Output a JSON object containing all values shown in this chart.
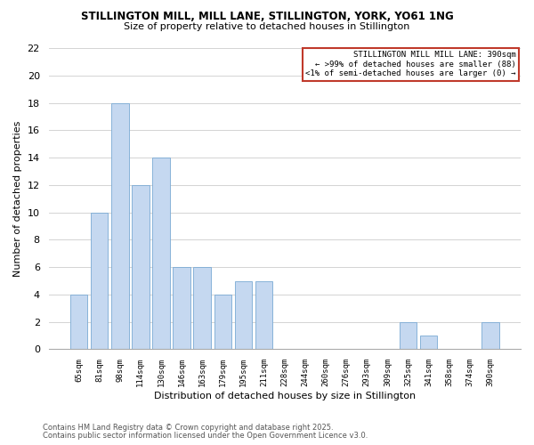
{
  "title1": "STILLINGTON MILL, MILL LANE, STILLINGTON, YORK, YO61 1NG",
  "title2": "Size of property relative to detached houses in Stillington",
  "xlabel": "Distribution of detached houses by size in Stillington",
  "ylabel": "Number of detached properties",
  "categories": [
    "65sqm",
    "81sqm",
    "98sqm",
    "114sqm",
    "130sqm",
    "146sqm",
    "163sqm",
    "179sqm",
    "195sqm",
    "211sqm",
    "228sqm",
    "244sqm",
    "260sqm",
    "276sqm",
    "293sqm",
    "309sqm",
    "325sqm",
    "341sqm",
    "358sqm",
    "374sqm",
    "390sqm"
  ],
  "values": [
    4,
    10,
    18,
    12,
    14,
    6,
    6,
    4,
    5,
    5,
    0,
    0,
    0,
    0,
    0,
    0,
    2,
    1,
    0,
    0,
    2
  ],
  "bar_color": "#c5d8f0",
  "bar_edge_color": "#7aaad4",
  "highlight_color": "#c0392b",
  "background_color": "#ffffff",
  "plot_bg_color": "#ffffff",
  "grid_color": "#cccccc",
  "ylim": [
    0,
    22
  ],
  "yticks": [
    0,
    2,
    4,
    6,
    8,
    10,
    12,
    14,
    16,
    18,
    20,
    22
  ],
  "annotation_title": "STILLINGTON MILL MILL LANE: 390sqm",
  "annotation_line1": "← >99% of detached houses are smaller (88)",
  "annotation_line2": "<1% of semi-detached houses are larger (0) →",
  "footer1": "Contains HM Land Registry data © Crown copyright and database right 2025.",
  "footer2": "Contains public sector information licensed under the Open Government Licence v3.0."
}
